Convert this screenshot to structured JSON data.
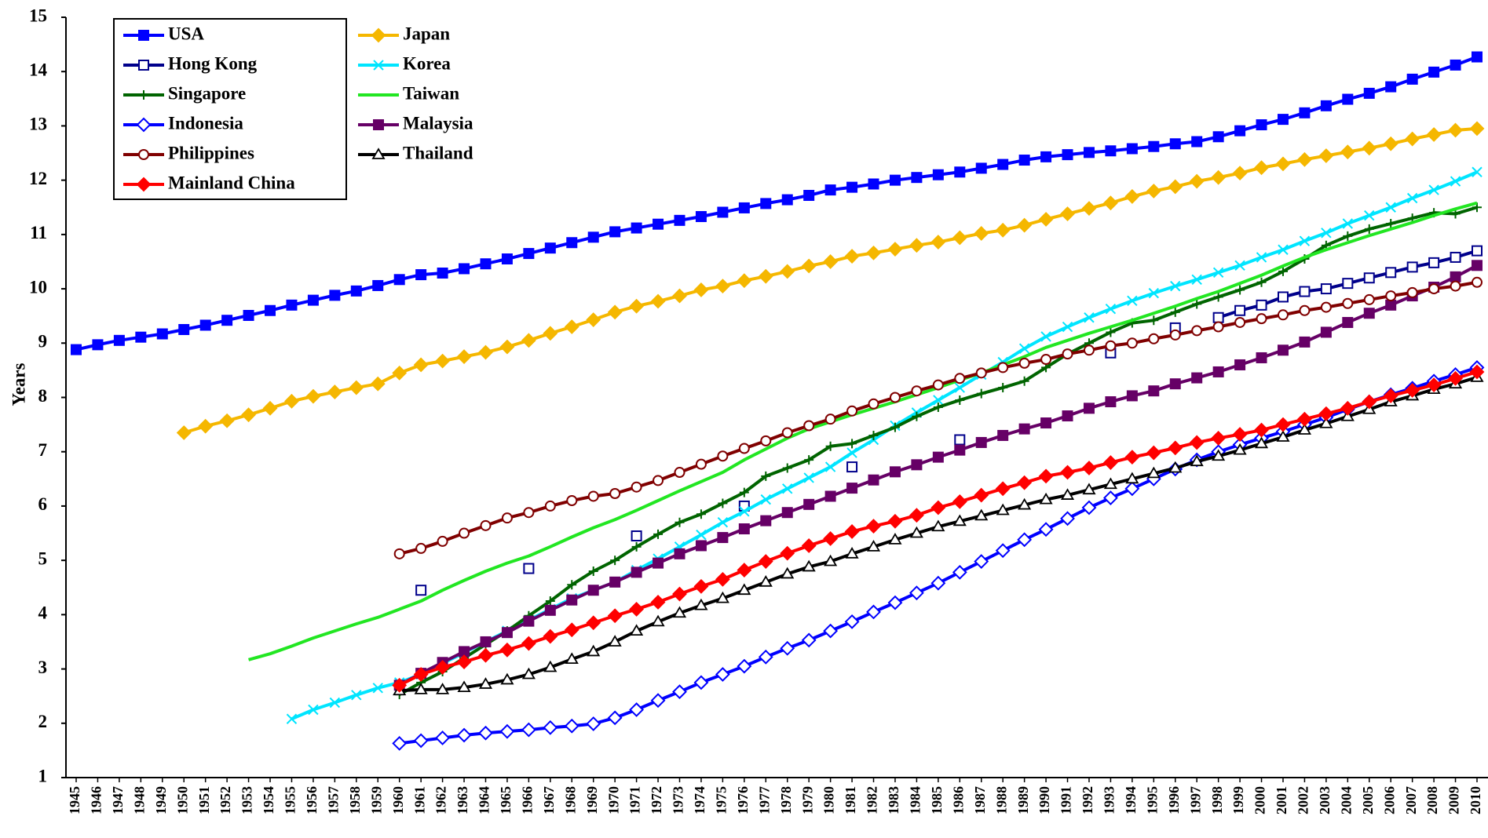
{
  "chart_data": {
    "type": "line",
    "y_label": "Years",
    "ylim": [
      1,
      15
    ],
    "yticks": [
      1,
      2,
      3,
      4,
      5,
      6,
      7,
      8,
      9,
      10,
      11,
      12,
      13,
      14,
      15
    ],
    "legend": "upper left",
    "x": [
      1945,
      1946,
      1947,
      1948,
      1949,
      1950,
      1951,
      1952,
      1953,
      1954,
      1955,
      1956,
      1957,
      1958,
      1959,
      1960,
      1961,
      1962,
      1963,
      1964,
      1965,
      1966,
      1967,
      1968,
      1969,
      1970,
      1971,
      1972,
      1973,
      1974,
      1975,
      1976,
      1977,
      1978,
      1979,
      1980,
      1981,
      1982,
      1983,
      1984,
      1985,
      1986,
      1987,
      1988,
      1989,
      1990,
      1991,
      1992,
      1993,
      1994,
      1995,
      1996,
      1997,
      1998,
      1999,
      2000,
      2001,
      2002,
      2003,
      2004,
      2005,
      2006,
      2007,
      2008,
      2009,
      2010
    ],
    "series": [
      {
        "name": "USA",
        "color": "#0000ff",
        "marker": "square-filled",
        "values": [
          8.88,
          8.97,
          9.05,
          9.11,
          9.17,
          9.25,
          9.33,
          9.42,
          9.51,
          9.6,
          9.7,
          9.79,
          9.88,
          9.96,
          10.06,
          10.17,
          10.26,
          10.29,
          10.37,
          10.46,
          10.55,
          10.65,
          10.75,
          10.85,
          10.95,
          11.05,
          11.12,
          11.19,
          11.26,
          11.33,
          11.41,
          11.49,
          11.57,
          11.64,
          11.72,
          11.82,
          11.87,
          11.93,
          12.0,
          12.05,
          12.1,
          12.15,
          12.22,
          12.29,
          12.37,
          12.43,
          12.47,
          12.51,
          12.54,
          12.58,
          12.62,
          12.67,
          12.71,
          12.8,
          12.91,
          13.02,
          13.12,
          13.24,
          13.37,
          13.49,
          13.6,
          13.72,
          13.86,
          13.99,
          14.12,
          14.27
        ]
      },
      {
        "name": "Japan",
        "color": "#f5b700",
        "marker": "diamond-filled",
        "values": [
          null,
          null,
          null,
          null,
          null,
          7.35,
          7.47,
          7.57,
          7.68,
          7.8,
          7.93,
          8.02,
          8.1,
          8.18,
          8.25,
          8.45,
          8.6,
          8.67,
          8.75,
          8.83,
          8.93,
          9.05,
          9.18,
          9.3,
          9.43,
          9.57,
          9.68,
          9.77,
          9.87,
          9.98,
          10.05,
          10.15,
          10.23,
          10.32,
          10.42,
          10.5,
          10.6,
          10.66,
          10.73,
          10.8,
          10.86,
          10.94,
          11.02,
          11.08,
          11.17,
          11.28,
          11.38,
          11.48,
          11.58,
          11.7,
          11.8,
          11.88,
          11.98,
          12.05,
          12.13,
          12.23,
          12.3,
          12.38,
          12.45,
          12.52,
          12.59,
          12.67,
          12.76,
          12.84,
          12.92,
          12.95
        ]
      },
      {
        "name": "Hong Kong",
        "color": "#00008b",
        "marker": "square-open",
        "values": [
          null,
          null,
          null,
          null,
          null,
          null,
          null,
          null,
          null,
          null,
          null,
          null,
          null,
          null,
          null,
          null,
          4.45,
          null,
          null,
          null,
          null,
          4.85,
          null,
          null,
          null,
          null,
          5.45,
          null,
          null,
          null,
          null,
          6.0,
          null,
          null,
          null,
          null,
          6.72,
          null,
          null,
          null,
          null,
          7.22,
          null,
          null,
          null,
          null,
          null,
          null,
          8.82,
          null,
          null,
          9.28,
          null,
          9.47,
          9.6,
          9.7,
          9.85,
          9.95,
          10.0,
          10.1,
          10.2,
          10.3,
          10.4,
          10.48,
          10.58,
          10.7
        ]
      },
      {
        "name": "Korea",
        "color": "#00e5ff",
        "marker": "x",
        "values": [
          null,
          null,
          null,
          null,
          null,
          null,
          null,
          null,
          null,
          null,
          2.08,
          2.25,
          2.38,
          2.52,
          2.65,
          2.75,
          2.9,
          3.1,
          3.3,
          3.5,
          3.7,
          3.9,
          4.1,
          4.3,
          4.45,
          4.6,
          4.82,
          5.03,
          5.25,
          5.47,
          5.7,
          5.9,
          6.12,
          6.32,
          6.52,
          6.72,
          6.98,
          7.22,
          7.48,
          7.72,
          7.95,
          8.18,
          8.42,
          8.65,
          8.9,
          9.12,
          9.3,
          9.47,
          9.63,
          9.78,
          9.92,
          10.05,
          10.17,
          10.3,
          10.43,
          10.58,
          10.72,
          10.88,
          11.03,
          11.2,
          11.35,
          11.5,
          11.67,
          11.82,
          11.98,
          12.15
        ]
      },
      {
        "name": "Singapore",
        "color": "#006400",
        "marker": "plus",
        "values": [
          null,
          null,
          null,
          null,
          null,
          null,
          null,
          null,
          null,
          null,
          null,
          null,
          null,
          null,
          null,
          2.53,
          2.75,
          2.95,
          3.2,
          3.45,
          3.7,
          3.98,
          4.25,
          4.55,
          4.8,
          5.0,
          5.25,
          5.48,
          5.7,
          5.85,
          6.05,
          6.25,
          6.55,
          6.7,
          6.85,
          7.1,
          7.15,
          7.3,
          7.45,
          7.65,
          7.82,
          7.95,
          8.07,
          8.18,
          8.3,
          8.55,
          8.8,
          9.0,
          9.2,
          9.37,
          9.42,
          9.57,
          9.72,
          9.85,
          9.98,
          10.12,
          10.32,
          10.55,
          10.8,
          10.97,
          11.1,
          11.2,
          11.3,
          11.4,
          11.38,
          11.5
        ]
      },
      {
        "name": "Taiwan",
        "color": "#22e622",
        "marker": "none",
        "values": [
          null,
          null,
          null,
          null,
          null,
          null,
          null,
          null,
          3.17,
          3.28,
          3.42,
          3.57,
          3.7,
          3.83,
          3.95,
          4.1,
          4.25,
          4.45,
          4.63,
          4.8,
          4.95,
          5.08,
          5.25,
          5.43,
          5.6,
          5.75,
          5.92,
          6.1,
          6.28,
          6.45,
          6.62,
          6.85,
          7.05,
          7.25,
          7.42,
          7.55,
          7.68,
          7.8,
          7.92,
          8.05,
          8.18,
          8.32,
          8.45,
          8.6,
          8.75,
          8.92,
          9.05,
          9.18,
          9.3,
          9.42,
          9.55,
          9.68,
          9.82,
          9.95,
          10.1,
          10.25,
          10.42,
          10.58,
          10.72,
          10.85,
          10.98,
          11.1,
          11.22,
          11.35,
          11.47,
          11.58
        ]
      },
      {
        "name": "Indonesia",
        "color": "#0000ff",
        "marker": "diamond-open",
        "values": [
          null,
          null,
          null,
          null,
          null,
          null,
          null,
          null,
          null,
          null,
          null,
          null,
          null,
          null,
          null,
          1.63,
          1.68,
          1.73,
          1.78,
          1.82,
          1.85,
          1.88,
          1.92,
          1.95,
          1.99,
          2.1,
          2.25,
          2.42,
          2.58,
          2.75,
          2.9,
          3.05,
          3.22,
          3.38,
          3.53,
          3.7,
          3.87,
          4.05,
          4.22,
          4.4,
          4.58,
          4.78,
          4.98,
          5.18,
          5.38,
          5.57,
          5.77,
          5.97,
          6.15,
          6.32,
          6.5,
          6.68,
          6.85,
          7.0,
          7.13,
          7.25,
          7.37,
          7.5,
          7.63,
          7.78,
          7.92,
          8.05,
          8.17,
          8.3,
          8.42,
          8.55
        ]
      },
      {
        "name": "Malaysia",
        "color": "#660066",
        "marker": "square-filled",
        "values": [
          null,
          null,
          null,
          null,
          null,
          null,
          null,
          null,
          null,
          null,
          null,
          null,
          null,
          null,
          null,
          2.7,
          2.92,
          3.12,
          3.32,
          3.5,
          3.67,
          3.88,
          4.08,
          4.27,
          4.45,
          4.6,
          4.78,
          4.95,
          5.12,
          5.27,
          5.42,
          5.58,
          5.73,
          5.88,
          6.03,
          6.18,
          6.33,
          6.48,
          6.63,
          6.76,
          6.9,
          7.03,
          7.17,
          7.3,
          7.42,
          7.53,
          7.66,
          7.8,
          7.92,
          8.03,
          8.12,
          8.25,
          8.36,
          8.47,
          8.6,
          8.73,
          8.87,
          9.02,
          9.2,
          9.38,
          9.55,
          9.7,
          9.87,
          10.03,
          10.22,
          10.43
        ]
      },
      {
        "name": "Philippines",
        "color": "#800000",
        "marker": "circle-open",
        "values": [
          null,
          null,
          null,
          null,
          null,
          null,
          null,
          null,
          null,
          null,
          null,
          null,
          null,
          null,
          null,
          5.12,
          5.22,
          5.35,
          5.5,
          5.64,
          5.78,
          5.88,
          6.0,
          6.1,
          6.18,
          6.23,
          6.35,
          6.47,
          6.62,
          6.77,
          6.92,
          7.06,
          7.2,
          7.35,
          7.48,
          7.6,
          7.75,
          7.88,
          8.0,
          8.12,
          8.23,
          8.35,
          8.45,
          8.55,
          8.63,
          8.7,
          8.8,
          8.87,
          8.95,
          9.0,
          9.08,
          9.15,
          9.23,
          9.3,
          9.38,
          9.45,
          9.52,
          9.6,
          9.66,
          9.73,
          9.8,
          9.87,
          9.93,
          10.0,
          10.05,
          10.12
        ]
      },
      {
        "name": "Thailand",
        "color": "#000000",
        "marker": "triangle-open",
        "values": [
          null,
          null,
          null,
          null,
          null,
          null,
          null,
          null,
          null,
          null,
          null,
          null,
          null,
          null,
          null,
          2.6,
          2.62,
          2.62,
          2.66,
          2.72,
          2.8,
          2.9,
          3.03,
          3.18,
          3.32,
          3.5,
          3.7,
          3.87,
          4.03,
          4.17,
          4.3,
          4.45,
          4.6,
          4.75,
          4.88,
          4.98,
          5.12,
          5.25,
          5.38,
          5.5,
          5.62,
          5.72,
          5.82,
          5.92,
          6.02,
          6.12,
          6.2,
          6.3,
          6.4,
          6.5,
          6.6,
          6.7,
          6.82,
          6.92,
          7.03,
          7.15,
          7.27,
          7.4,
          7.52,
          7.65,
          7.78,
          7.92,
          8.03,
          8.15,
          8.25,
          8.37
        ]
      },
      {
        "name": "Mainland China",
        "color": "#ff0000",
        "marker": "diamond-filled",
        "values": [
          null,
          null,
          null,
          null,
          null,
          null,
          null,
          null,
          null,
          null,
          null,
          null,
          null,
          null,
          null,
          2.7,
          2.9,
          3.03,
          3.13,
          3.25,
          3.35,
          3.47,
          3.6,
          3.72,
          3.85,
          3.98,
          4.1,
          4.23,
          4.38,
          4.52,
          4.65,
          4.82,
          4.98,
          5.13,
          5.27,
          5.4,
          5.53,
          5.63,
          5.72,
          5.83,
          5.97,
          6.08,
          6.2,
          6.32,
          6.43,
          6.55,
          6.62,
          6.7,
          6.8,
          6.9,
          6.98,
          7.07,
          7.17,
          7.25,
          7.32,
          7.4,
          7.5,
          7.6,
          7.7,
          7.8,
          7.92,
          8.03,
          8.13,
          8.23,
          8.35,
          8.47
        ]
      }
    ]
  }
}
